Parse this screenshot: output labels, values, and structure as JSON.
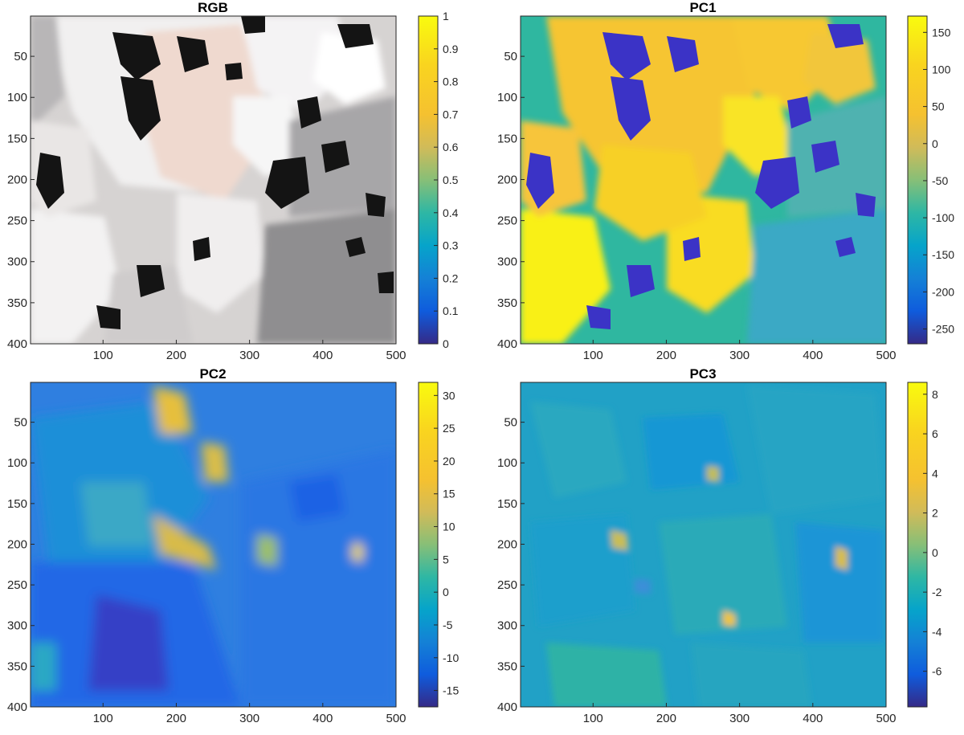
{
  "chart_data": [
    {
      "type": "heatmap",
      "title": "RGB",
      "image": "true-color granite photograph (rgb)",
      "x_ticks": [
        "100",
        "200",
        "300",
        "400",
        "500"
      ],
      "y_ticks": [
        "50",
        "100",
        "150",
        "200",
        "250",
        "300",
        "350",
        "400"
      ],
      "xlim": [
        1,
        500
      ],
      "ylim": [
        1,
        400
      ],
      "colorbar": {
        "range": [
          0,
          1
        ],
        "ticks": [
          "1",
          "0.9",
          "0.8",
          "0.7",
          "0.6",
          "0.5",
          "0.4",
          "0.3",
          "0.2",
          "0.1",
          "0"
        ]
      },
      "colormap": "parula",
      "grid": false
    },
    {
      "type": "heatmap",
      "title": "PC1",
      "image": "first principal component image",
      "x_ticks": [
        "100",
        "200",
        "300",
        "400",
        "500"
      ],
      "y_ticks": [
        "50",
        "100",
        "150",
        "200",
        "250",
        "300",
        "350",
        "400"
      ],
      "xlim": [
        1,
        500
      ],
      "ylim": [
        1,
        400
      ],
      "colorbar": {
        "range": [
          -270,
          172
        ],
        "ticks": [
          "150",
          "100",
          "50",
          "0",
          "-50",
          "-100",
          "-150",
          "-200",
          "-250"
        ]
      },
      "colormap": "parula",
      "grid": false
    },
    {
      "type": "heatmap",
      "title": "PC2",
      "image": "second principal component image",
      "x_ticks": [
        "100",
        "200",
        "300",
        "400",
        "500"
      ],
      "y_ticks": [
        "50",
        "100",
        "150",
        "200",
        "250",
        "300",
        "350",
        "400"
      ],
      "xlim": [
        1,
        500
      ],
      "ylim": [
        1,
        400
      ],
      "colorbar": {
        "range": [
          -17.5,
          32
        ],
        "ticks": [
          "30",
          "25",
          "20",
          "15",
          "10",
          "5",
          "0",
          "-5",
          "-10",
          "-15"
        ]
      },
      "colormap": "parula",
      "grid": false
    },
    {
      "type": "heatmap",
      "title": "PC3",
      "image": "third principal component image",
      "x_ticks": [
        "100",
        "200",
        "300",
        "400",
        "500"
      ],
      "y_ticks": [
        "50",
        "100",
        "150",
        "200",
        "250",
        "300",
        "350",
        "400"
      ],
      "xlim": [
        1,
        500
      ],
      "ylim": [
        1,
        400
      ],
      "colorbar": {
        "range": [
          -7.8,
          8.6
        ],
        "ticks": [
          "8",
          "6",
          "4",
          "2",
          "0",
          "-2",
          "-4",
          "-6"
        ]
      },
      "colormap": "parula",
      "grid": false
    }
  ]
}
